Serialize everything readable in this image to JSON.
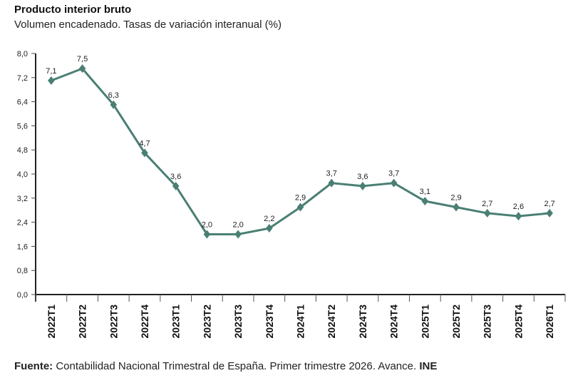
{
  "chart_data": {
    "type": "line",
    "title": "Producto interior bruto",
    "subtitle": "Volumen encadenado. Tasas de variación interanual (%)",
    "categories": [
      "2022T1",
      "2022T2",
      "2022T3",
      "2022T4",
      "2023T1",
      "2023T2",
      "2023T3",
      "2023T4",
      "2024T1",
      "2024T2",
      "2024T3",
      "2024T4",
      "2025T1",
      "2025T2",
      "2025T3",
      "2025T4",
      "2026T1"
    ],
    "values": [
      7.1,
      7.5,
      6.3,
      4.7,
      3.6,
      2.0,
      2.0,
      2.2,
      2.9,
      3.7,
      3.6,
      3.7,
      3.1,
      2.9,
      2.7,
      2.6,
      2.7
    ],
    "data_labels": [
      "7,1",
      "7,5",
      "6,3",
      "4,7",
      "3,6",
      "2,0",
      "2,0",
      "2,2",
      "2,9",
      "3,7",
      "3,6",
      "3,7",
      "3,1",
      "2,9",
      "2,7",
      "2,6",
      "2,7"
    ],
    "ylim": [
      0,
      8
    ],
    "yticks": [
      "0,0",
      "0,8",
      "1,6",
      "2,4",
      "3,2",
      "4,0",
      "4,8",
      "5,6",
      "6,4",
      "7,2",
      "8,0"
    ],
    "grid": false,
    "line_color": "#4a7f74",
    "marker": "diamond"
  },
  "source": {
    "label": "Fuente:",
    "text": " Contabilidad Nacional Trimestral de España.  Primer trimestre 2026.  Avance. ",
    "org": "INE"
  }
}
